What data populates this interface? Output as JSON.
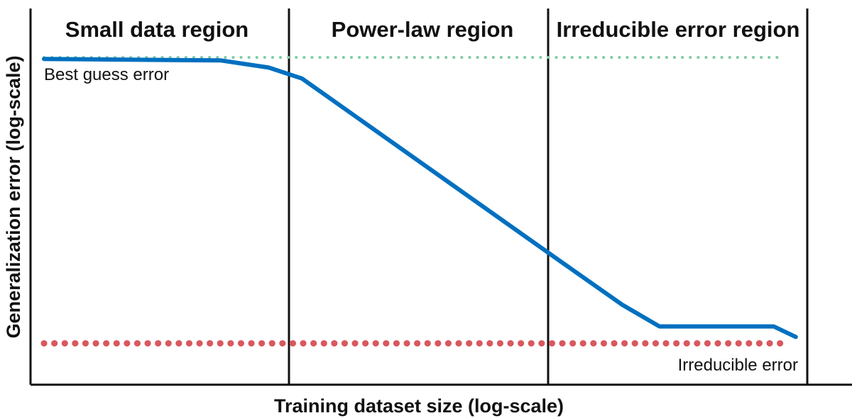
{
  "chart_data": {
    "type": "line",
    "title": "",
    "xlabel": "Training dataset size (log-scale)",
    "ylabel": "Generalization error (log-scale)",
    "x_scale": "log",
    "y_scale": "log",
    "grid": false,
    "legend": "none",
    "regions": [
      {
        "label": "Small data region"
      },
      {
        "label": "Power-law region"
      },
      {
        "label": "Irreducible error region"
      }
    ],
    "reference_lines": [
      {
        "label": "Best guess error",
        "style": "dotted",
        "color": "#7fcca3",
        "level": 0.87
      },
      {
        "label": "Irreducible error",
        "style": "dotted",
        "color": "#d8585e",
        "level": 0.11
      }
    ],
    "series": [
      {
        "color": "#0070c0",
        "x": [
          0.0,
          0.24,
          0.305,
          0.35,
          0.705,
          0.785,
          0.835,
          0.99,
          1.02
        ],
        "y": [
          0.866,
          0.862,
          0.843,
          0.814,
          0.322,
          0.212,
          0.155,
          0.155,
          0.127
        ]
      }
    ]
  }
}
